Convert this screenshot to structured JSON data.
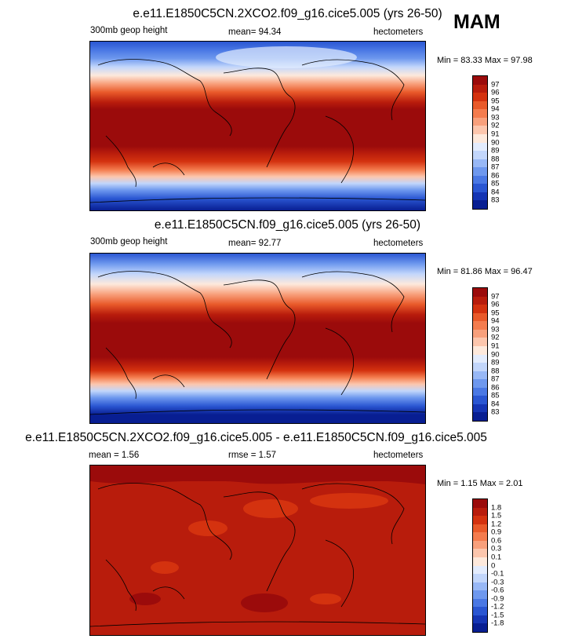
{
  "season": "MAM",
  "units": "hectometers",
  "panels": [
    {
      "title": "e.e11.E1850C5CN.2XCO2.f09_g16.cice5.005 (yrs 26-50)",
      "left_label": "300mb geop height",
      "center_label": "mean=  94.34",
      "right_label": "hectometers",
      "min_max": "Min =  83.33 Max =  97.98",
      "levels": [
        "97",
        "96",
        "95",
        "94",
        "93",
        "92",
        "91",
        "90",
        "89",
        "88",
        "87",
        "86",
        "85",
        "84",
        "83"
      ],
      "colors": [
        "#9b0b0b",
        "#b81c0c",
        "#d4320f",
        "#e95a2a",
        "#f47c4e",
        "#f8a07c",
        "#fcc6ad",
        "#fde9dc",
        "#e3ecfd",
        "#c2d6fb",
        "#98b8f6",
        "#6e98ee",
        "#4a78e4",
        "#2a56d2",
        "#1535b4",
        "#081e92"
      ]
    },
    {
      "title": "e.e11.E1850C5CN.f09_g16.cice5.005 (yrs 26-50)",
      "left_label": "300mb geop height",
      "center_label": "mean=  92.77",
      "right_label": "hectometers",
      "min_max": "Min =  81.86 Max =  96.47",
      "levels": [
        "97",
        "96",
        "95",
        "94",
        "93",
        "92",
        "91",
        "90",
        "89",
        "88",
        "87",
        "86",
        "85",
        "84",
        "83"
      ],
      "colors": [
        "#9b0b0b",
        "#b81c0c",
        "#d4320f",
        "#e95a2a",
        "#f47c4e",
        "#f8a07c",
        "#fcc6ad",
        "#fde9dc",
        "#e3ecfd",
        "#c2d6fb",
        "#98b8f6",
        "#6e98ee",
        "#4a78e4",
        "#2a56d2",
        "#1535b4",
        "#081e92"
      ]
    },
    {
      "title": "e.e11.E1850C5CN.2XCO2.f09_g16.cice5.005 - e.e11.E1850C5CN.f09_g16.cice5.005",
      "left_label": "mean =   1.56",
      "center_label": "rmse =   1.57",
      "right_label": "hectometers",
      "min_max": "Min =  1.15 Max =  2.01",
      "levels": [
        "1.8",
        "1.5",
        "1.2",
        "0.9",
        "0.6",
        "0.3",
        "0.1",
        "0",
        "-0.1",
        "-0.3",
        "-0.6",
        "-0.9",
        "-1.2",
        "-1.5",
        "-1.8"
      ],
      "colors": [
        "#9b0b0b",
        "#b81c0c",
        "#d4320f",
        "#e95a2a",
        "#f47c4e",
        "#f8a07c",
        "#fcc6ad",
        "#fde9dc",
        "#e3ecfd",
        "#c2d6fb",
        "#98b8f6",
        "#6e98ee",
        "#4a78e4",
        "#2a56d2",
        "#1535b4",
        "#081e92"
      ]
    }
  ]
}
